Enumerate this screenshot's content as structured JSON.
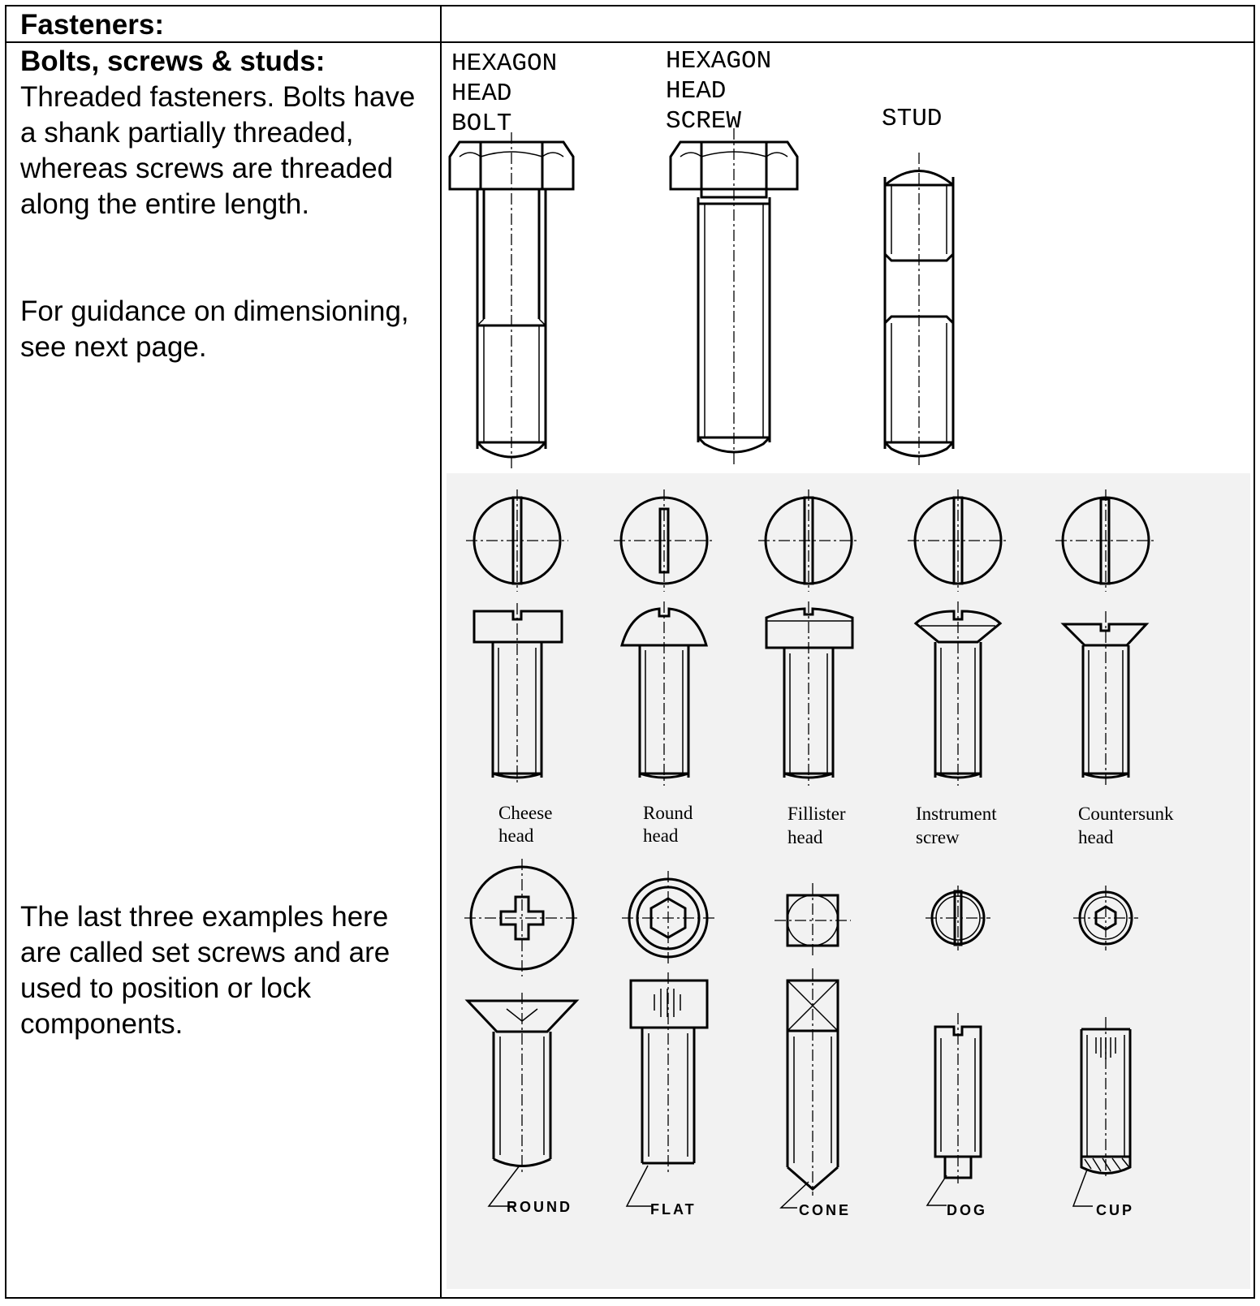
{
  "section_title": "Fasteners:",
  "subsection_title": "Bolts, screws & studs:",
  "description": "Threaded fasteners.  Bolts have a shank partially threaded, whereas screws are threaded along the entire length.",
  "guidance": "For guidance on dimensioning, see next page.",
  "set_screws_note": "The last three examples here are called set screws and are used to position or lock components.",
  "figure": {
    "fasteners": [
      {
        "line1": "HEXAGON",
        "line2": "HEAD",
        "line3": "BOLT"
      },
      {
        "line1": "HEXAGON",
        "line2": "HEAD",
        "line3": "SCREW"
      },
      {
        "line1": "STUD"
      }
    ],
    "heads": [
      {
        "line1": "Cheese",
        "line2": "head"
      },
      {
        "line1": "Round",
        "line2": "head"
      },
      {
        "line1": "Fillister",
        "line2": "head"
      },
      {
        "line1": "Instrument",
        "line2": "screw"
      },
      {
        "line1": "Countersunk",
        "line2": "head"
      }
    ],
    "points": [
      "ROUND",
      "FLAT",
      "CONE",
      "DOG",
      "CUP"
    ]
  }
}
